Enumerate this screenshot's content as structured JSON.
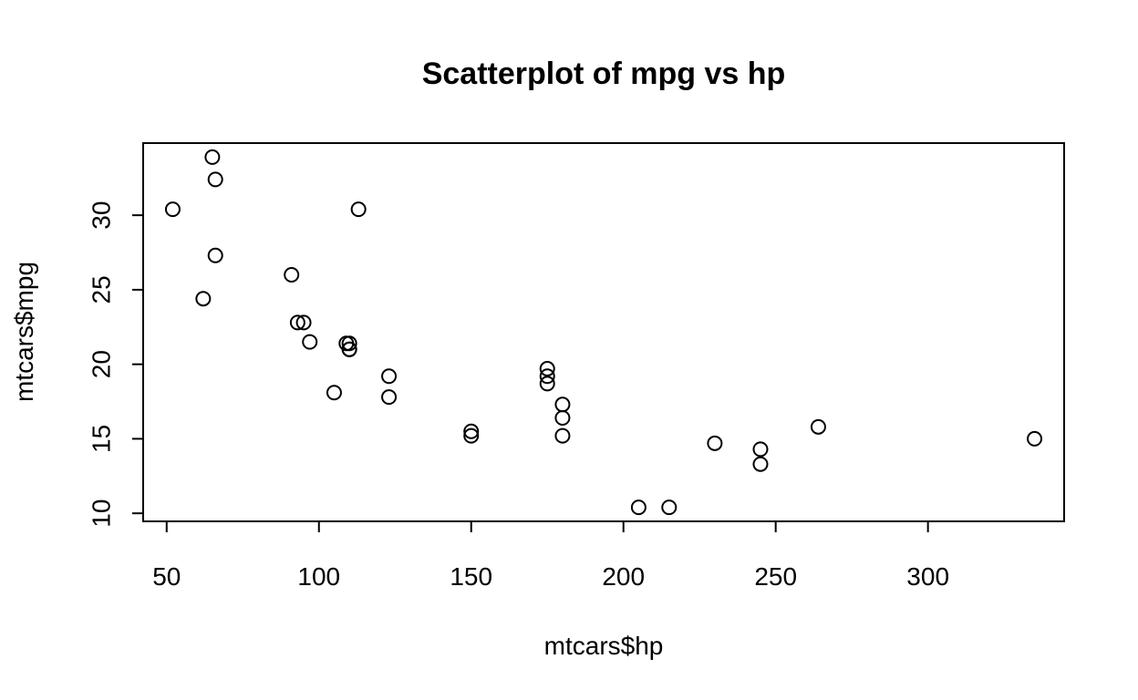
{
  "chart_data": {
    "type": "scatter",
    "title": "Scatterplot of mpg vs hp",
    "xlabel": "mtcars$hp",
    "ylabel": "mtcars$mpg",
    "x_ticks": [
      50,
      100,
      150,
      200,
      250,
      300
    ],
    "y_ticks": [
      10,
      15,
      20,
      25,
      30
    ],
    "xlim": [
      42.28,
      344.72
    ],
    "ylim": [
      9.46,
      34.84
    ],
    "grid": false,
    "legend": "none",
    "marker": "open-circle",
    "points": [
      {
        "x": 110,
        "y": 21.0
      },
      {
        "x": 110,
        "y": 21.0
      },
      {
        "x": 93,
        "y": 22.8
      },
      {
        "x": 110,
        "y": 21.4
      },
      {
        "x": 175,
        "y": 18.7
      },
      {
        "x": 105,
        "y": 18.1
      },
      {
        "x": 245,
        "y": 14.3
      },
      {
        "x": 62,
        "y": 24.4
      },
      {
        "x": 95,
        "y": 22.8
      },
      {
        "x": 123,
        "y": 19.2
      },
      {
        "x": 123,
        "y": 17.8
      },
      {
        "x": 180,
        "y": 16.4
      },
      {
        "x": 180,
        "y": 17.3
      },
      {
        "x": 180,
        "y": 15.2
      },
      {
        "x": 205,
        "y": 10.4
      },
      {
        "x": 215,
        "y": 10.4
      },
      {
        "x": 230,
        "y": 14.7
      },
      {
        "x": 66,
        "y": 32.4
      },
      {
        "x": 52,
        "y": 30.4
      },
      {
        "x": 65,
        "y": 33.9
      },
      {
        "x": 97,
        "y": 21.5
      },
      {
        "x": 150,
        "y": 15.5
      },
      {
        "x": 150,
        "y": 15.2
      },
      {
        "x": 245,
        "y": 13.3
      },
      {
        "x": 175,
        "y": 19.2
      },
      {
        "x": 66,
        "y": 27.3
      },
      {
        "x": 91,
        "y": 26.0
      },
      {
        "x": 113,
        "y": 30.4
      },
      {
        "x": 264,
        "y": 15.8
      },
      {
        "x": 175,
        "y": 19.7
      },
      {
        "x": 335,
        "y": 15.0
      },
      {
        "x": 109,
        "y": 21.4
      }
    ]
  }
}
